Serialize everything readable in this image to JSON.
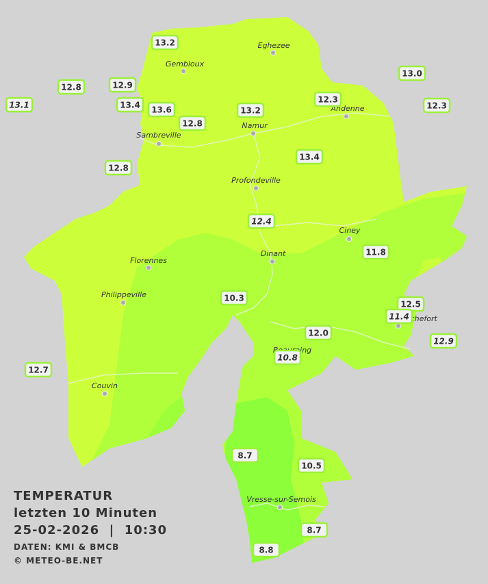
{
  "legend": {
    "title": "TEMPERATUR",
    "subtitle": "letzten 10 Minuten",
    "timestamp": "25-02-2026  |  10:30",
    "source": "DATEN: KMI & BMCB",
    "credit": "© METEO-BE.NET"
  },
  "cities": [
    "Eghezee",
    "Gembloux",
    "Andenne",
    "Namur",
    "Sambreville",
    "Profondeville",
    "Ciney",
    "Dinant",
    "Florennes",
    "Philippeville",
    "Rochefort",
    "Beauraing",
    "Couvin",
    "Vresse-sur-Semois"
  ],
  "stations": [
    "13.2",
    "12.8",
    "12.9",
    "13.1",
    "13.4",
    "13.6",
    "12.8",
    "13.2",
    "12.3",
    "13.0",
    "12.3",
    "12.8",
    "13.4",
    "12.4",
    "11.8",
    "10.3",
    "12.5",
    "11.4",
    "12.0",
    "10.8",
    "12.9",
    "12.7",
    "8.7",
    "10.5",
    "8.7",
    "8.8"
  ]
}
